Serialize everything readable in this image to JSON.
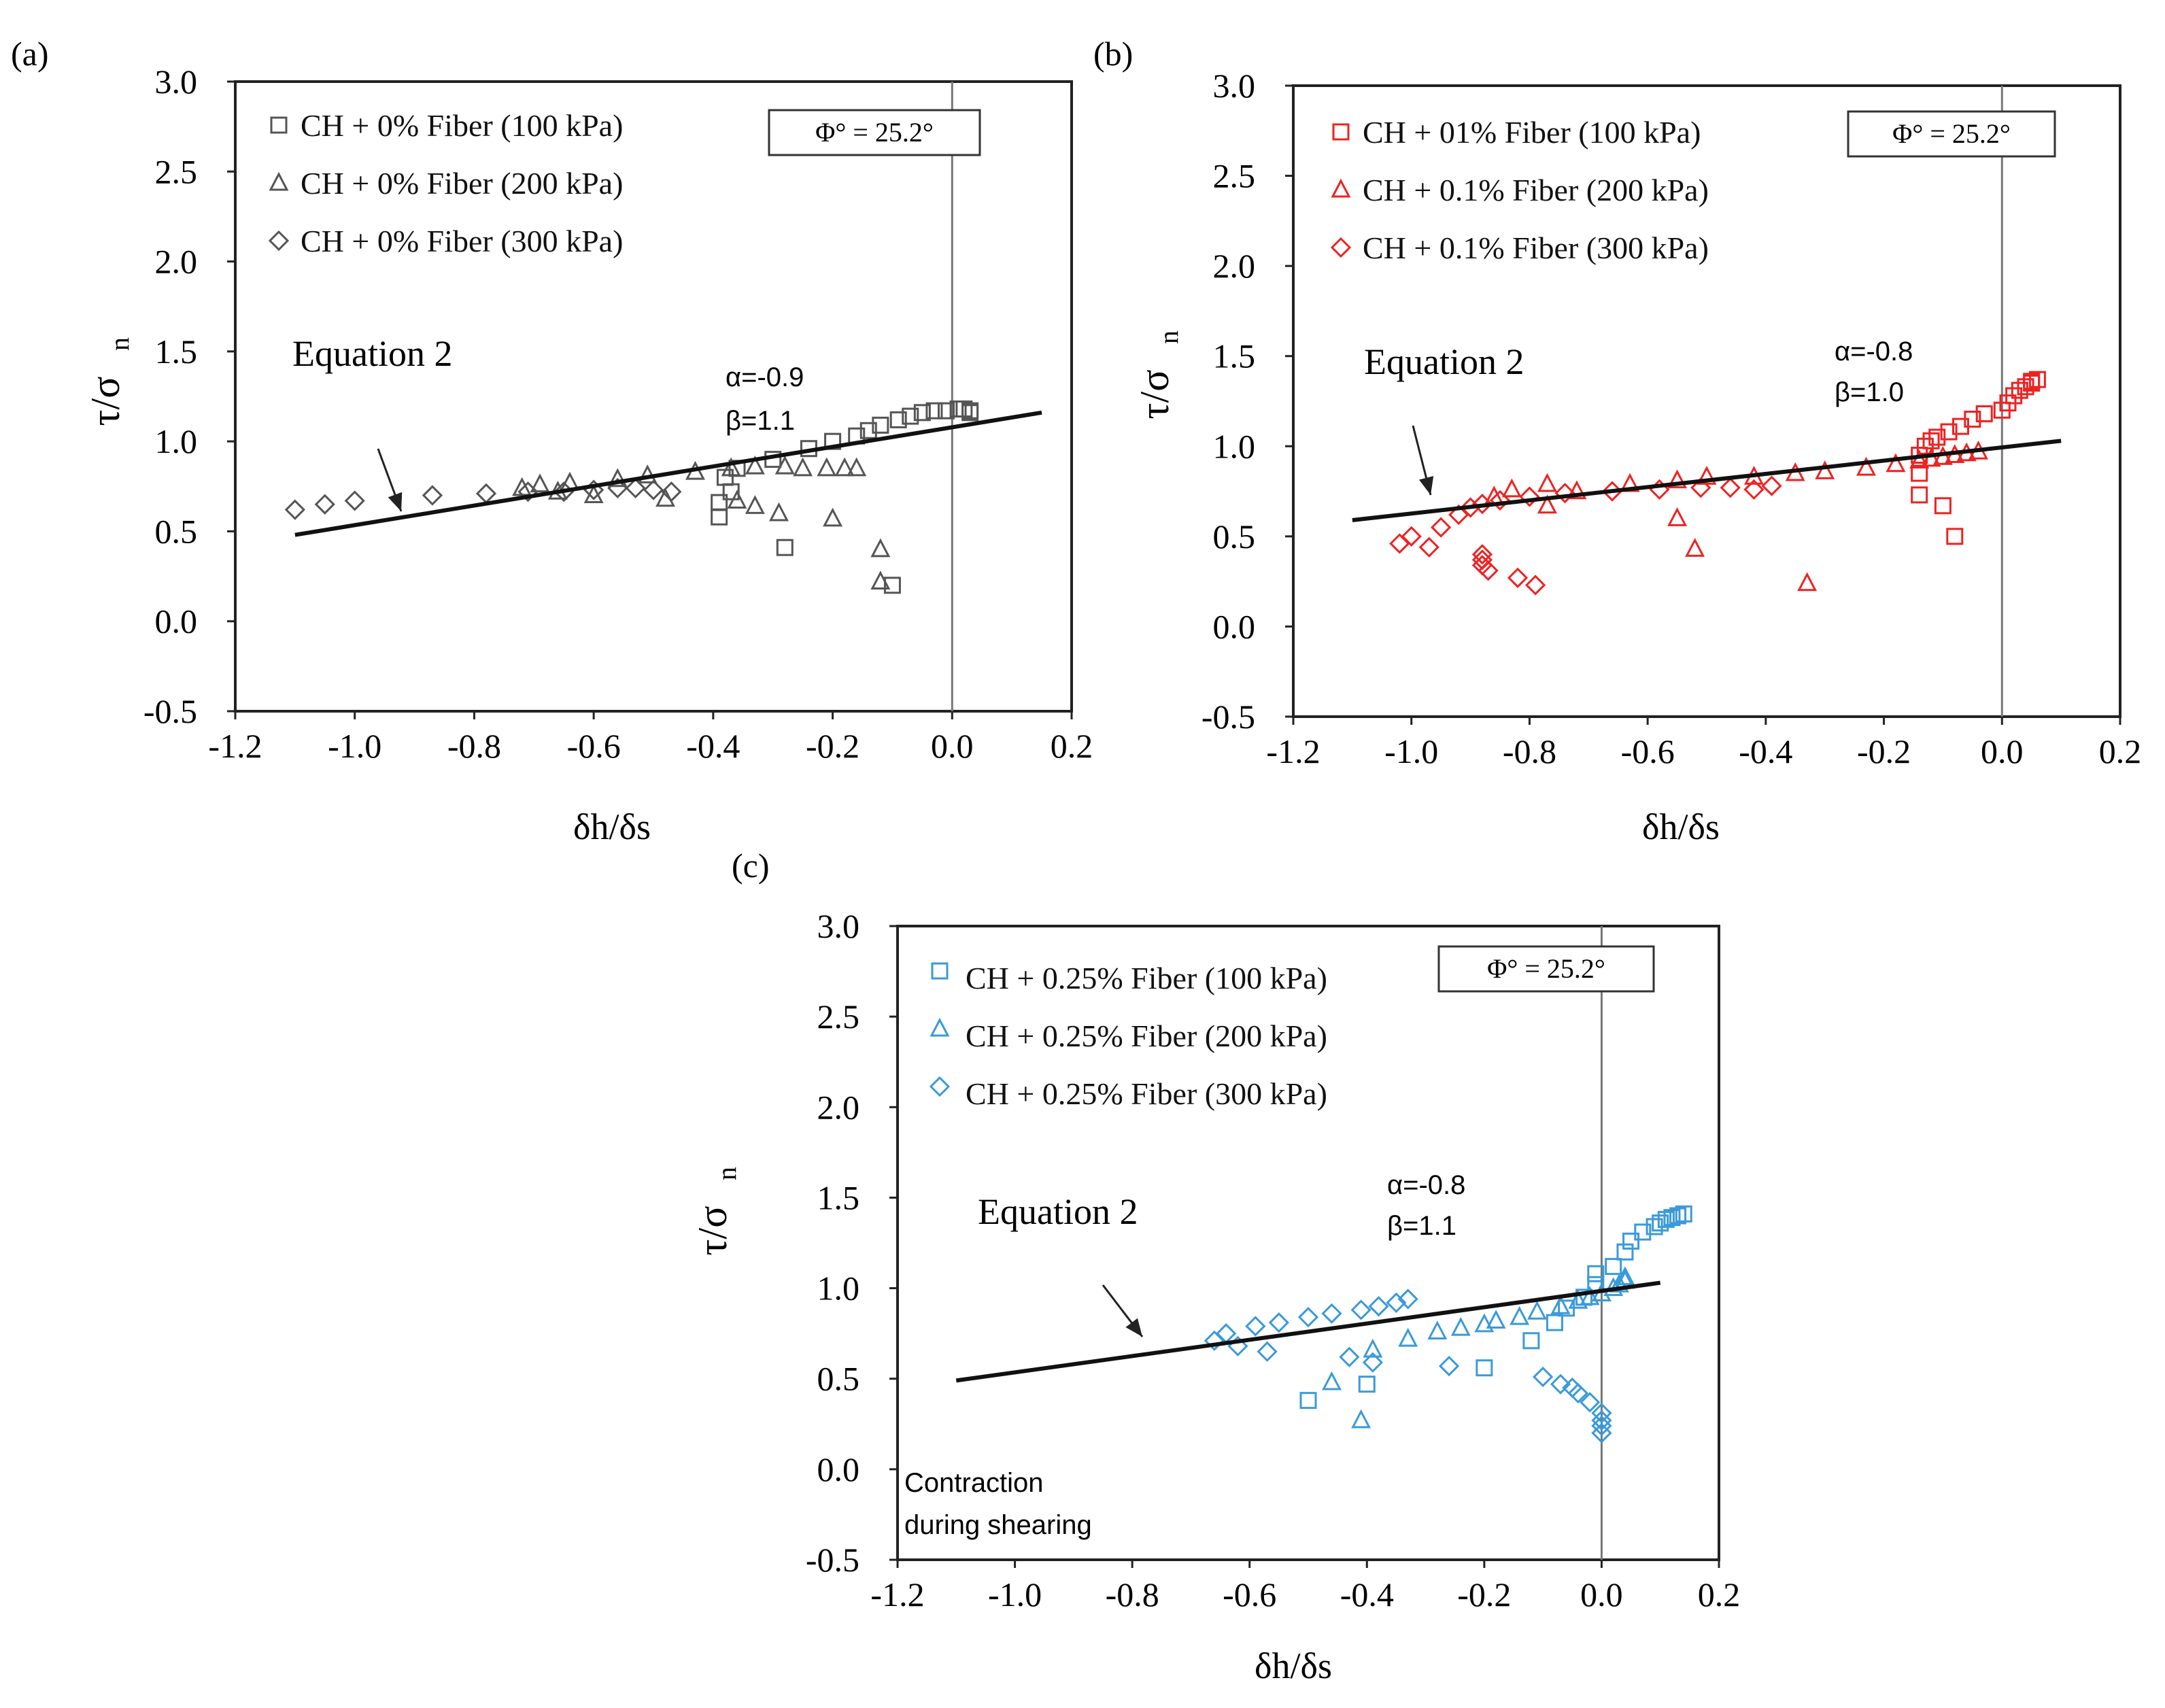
{
  "chart_data": [
    {
      "panel_label": "(a)",
      "type": "scatter",
      "title": "",
      "xlabel": "δh/δs",
      "ylabel_main": "τ/σ",
      "ylabel_sub": "n",
      "xlim": [
        -1.2,
        0.2
      ],
      "ylim": [
        -0.5,
        3.0
      ],
      "xticks": [
        -1.2,
        -1.0,
        -0.8,
        -0.6,
        -0.4,
        -0.2,
        0.0,
        0.2
      ],
      "xtick_labels": [
        "-1.2",
        "-1.0",
        "-0.8",
        "-0.6",
        "-0.4",
        "-0.2",
        "0.0",
        "0.2"
      ],
      "yticks": [
        -0.5,
        0.0,
        0.5,
        1.0,
        1.5,
        2.0,
        2.5,
        3.0
      ],
      "ytick_labels": [
        "-0.5",
        "0.0",
        "0.5",
        "1.0",
        "1.5",
        "2.0",
        "2.5",
        "3.0"
      ],
      "color": "#555555",
      "phi_label": "Φ° = 25.2°",
      "equation_label": "Equation 2",
      "alpha_label": "α=-0.9",
      "beta_label": "β=1.1",
      "fit_line": {
        "x": [
          -1.1,
          0.15
        ],
        "y": [
          0.48,
          1.16
        ]
      },
      "vertical_line_x": 0.0,
      "legend_position": "top-left",
      "series": [
        {
          "name": "CH + 0% Fiber (100 kPa)",
          "marker": "square",
          "points": [
            [
              -0.1,
              0.2
            ],
            [
              -0.28,
              0.41
            ],
            [
              -0.39,
              0.58
            ],
            [
              -0.39,
              0.66
            ],
            [
              -0.37,
              0.72
            ],
            [
              -0.38,
              0.8
            ],
            [
              -0.36,
              0.85
            ],
            [
              -0.3,
              0.9
            ],
            [
              -0.24,
              0.96
            ],
            [
              -0.2,
              1.0
            ],
            [
              -0.16,
              1.03
            ],
            [
              -0.14,
              1.06
            ],
            [
              -0.12,
              1.09
            ],
            [
              -0.09,
              1.12
            ],
            [
              -0.07,
              1.14
            ],
            [
              -0.05,
              1.16
            ],
            [
              -0.03,
              1.17
            ],
            [
              -0.01,
              1.17
            ],
            [
              0.01,
              1.18
            ],
            [
              0.02,
              1.18
            ],
            [
              0.03,
              1.17
            ],
            [
              0.03,
              1.16
            ]
          ]
        },
        {
          "name": "CH + 0% Fiber (200 kPa)",
          "marker": "triangle",
          "points": [
            [
              -0.12,
              0.22
            ],
            [
              -0.12,
              0.4
            ],
            [
              -0.2,
              0.57
            ],
            [
              -0.29,
              0.6
            ],
            [
              -0.33,
              0.64
            ],
            [
              -0.36,
              0.67
            ],
            [
              -0.48,
              0.68
            ],
            [
              -0.6,
              0.7
            ],
            [
              -0.66,
              0.72
            ],
            [
              -0.72,
              0.74
            ],
            [
              -0.69,
              0.76
            ],
            [
              -0.64,
              0.77
            ],
            [
              -0.56,
              0.79
            ],
            [
              -0.51,
              0.81
            ],
            [
              -0.43,
              0.83
            ],
            [
              -0.37,
              0.85
            ],
            [
              -0.33,
              0.86
            ],
            [
              -0.28,
              0.86
            ],
            [
              -0.25,
              0.85
            ],
            [
              -0.21,
              0.85
            ],
            [
              -0.18,
              0.85
            ],
            [
              -0.16,
              0.85
            ]
          ]
        },
        {
          "name": "CH + 0% Fiber (300 kPa)",
          "marker": "diamond",
          "points": [
            [
              -1.1,
              0.62
            ],
            [
              -1.05,
              0.65
            ],
            [
              -1.0,
              0.67
            ],
            [
              -0.87,
              0.7
            ],
            [
              -0.78,
              0.71
            ],
            [
              -0.71,
              0.72
            ],
            [
              -0.65,
              0.72
            ],
            [
              -0.6,
              0.73
            ],
            [
              -0.56,
              0.74
            ],
            [
              -0.53,
              0.74
            ],
            [
              -0.5,
              0.73
            ],
            [
              -0.47,
              0.72
            ]
          ]
        }
      ]
    },
    {
      "panel_label": "(b)",
      "type": "scatter",
      "title": "",
      "xlabel": "δh/δs",
      "ylabel_main": "τ/σ",
      "ylabel_sub": "n",
      "xlim": [
        -1.2,
        0.2
      ],
      "ylim": [
        -0.5,
        3.0
      ],
      "xticks": [
        -1.2,
        -1.0,
        -0.8,
        -0.6,
        -0.4,
        -0.2,
        0.0,
        0.2
      ],
      "xtick_labels": [
        "-1.2",
        "-1.0",
        "-0.8",
        "-0.6",
        "-0.4",
        "-0.2",
        "0.0",
        "0.2"
      ],
      "yticks": [
        -0.5,
        0.0,
        0.5,
        1.0,
        1.5,
        2.0,
        2.5,
        3.0
      ],
      "ytick_labels": [
        "-0.5",
        "0.0",
        "0.5",
        "1.0",
        "1.5",
        "2.0",
        "2.5",
        "3.0"
      ],
      "color": "#ee2222",
      "phi_label": "Φ° = 25.2°",
      "equation_label": "Equation 2",
      "alpha_label": "α=-0.8",
      "beta_label": "β=1.0",
      "fit_line": {
        "x": [
          -1.1,
          0.1
        ],
        "y": [
          0.59,
          1.03
        ]
      },
      "vertical_line_x": 0.0,
      "legend_position": "top-left",
      "series": [
        {
          "name": "CH + 01% Fiber (100 kPa)",
          "marker": "square",
          "points": [
            [
              -0.08,
              0.5
            ],
            [
              -0.1,
              0.67
            ],
            [
              -0.14,
              0.73
            ],
            [
              -0.14,
              0.85
            ],
            [
              -0.14,
              0.95
            ],
            [
              -0.13,
              1.0
            ],
            [
              -0.12,
              1.03
            ],
            [
              -0.11,
              1.05
            ],
            [
              -0.09,
              1.08
            ],
            [
              -0.07,
              1.11
            ],
            [
              -0.05,
              1.15
            ],
            [
              -0.03,
              1.18
            ],
            [
              0.0,
              1.2
            ],
            [
              0.01,
              1.24
            ],
            [
              0.02,
              1.28
            ],
            [
              0.03,
              1.31
            ],
            [
              0.04,
              1.33
            ],
            [
              0.05,
              1.35
            ],
            [
              0.05,
              1.36
            ],
            [
              0.06,
              1.37
            ]
          ]
        },
        {
          "name": "CH + 0.1% Fiber (200 kPa)",
          "marker": "triangle",
          "points": [
            [
              -0.33,
              0.24
            ],
            [
              -0.52,
              0.43
            ],
            [
              -0.55,
              0.6
            ],
            [
              -0.77,
              0.67
            ],
            [
              -0.86,
              0.72
            ],
            [
              -0.83,
              0.76
            ],
            [
              -0.77,
              0.79
            ],
            [
              -0.72,
              0.75
            ],
            [
              -0.63,
              0.79
            ],
            [
              -0.55,
              0.81
            ],
            [
              -0.5,
              0.83
            ],
            [
              -0.42,
              0.83
            ],
            [
              -0.35,
              0.85
            ],
            [
              -0.3,
              0.86
            ],
            [
              -0.23,
              0.88
            ],
            [
              -0.18,
              0.9
            ],
            [
              -0.14,
              0.92
            ],
            [
              -0.12,
              0.93
            ],
            [
              -0.1,
              0.94
            ],
            [
              -0.08,
              0.95
            ],
            [
              -0.06,
              0.96
            ],
            [
              -0.04,
              0.97
            ]
          ]
        },
        {
          "name": "CH + 0.1% Fiber (300 kPa)",
          "marker": "diamond",
          "points": [
            [
              -1.02,
              0.46
            ],
            [
              -1.0,
              0.5
            ],
            [
              -0.97,
              0.44
            ],
            [
              -0.88,
              0.34
            ],
            [
              -0.88,
              0.37
            ],
            [
              -0.88,
              0.4
            ],
            [
              -0.87,
              0.31
            ],
            [
              -0.82,
              0.27
            ],
            [
              -0.79,
              0.23
            ],
            [
              -0.95,
              0.55
            ],
            [
              -0.92,
              0.62
            ],
            [
              -0.9,
              0.66
            ],
            [
              -0.88,
              0.68
            ],
            [
              -0.85,
              0.7
            ],
            [
              -0.8,
              0.72
            ],
            [
              -0.74,
              0.74
            ],
            [
              -0.66,
              0.75
            ],
            [
              -0.58,
              0.76
            ],
            [
              -0.51,
              0.77
            ],
            [
              -0.46,
              0.77
            ],
            [
              -0.42,
              0.76
            ],
            [
              -0.39,
              0.78
            ]
          ]
        }
      ]
    },
    {
      "panel_label": "(c)",
      "type": "scatter",
      "title": "",
      "xlabel": "δh/δs",
      "ylabel_main": "τ/σ",
      "ylabel_sub": "n",
      "xlim": [
        -1.2,
        0.2
      ],
      "ylim": [
        -0.5,
        3.0
      ],
      "xticks": [
        -1.2,
        -1.0,
        -0.8,
        -0.6,
        -0.4,
        -0.2,
        0.0,
        0.2
      ],
      "xtick_labels": [
        "-1.2",
        "-1.0",
        "-0.8",
        "-0.6",
        "-0.4",
        "-0.2",
        "0.0",
        "0.2"
      ],
      "yticks": [
        -0.5,
        0.0,
        0.5,
        1.0,
        1.5,
        2.0,
        2.5,
        3.0
      ],
      "ytick_labels": [
        "-0.5",
        "0.0",
        "0.5",
        "1.0",
        "1.5",
        "2.0",
        "2.5",
        "3.0"
      ],
      "color": "#3a9ad9",
      "phi_label": "Φ° = 25.2°",
      "equation_label": "Equation 2",
      "alpha_label": "α=-0.8",
      "beta_label": "β=1.1",
      "annotation_line1": "Contraction",
      "annotation_line2": "during shearing",
      "fit_line": {
        "x": [
          -1.1,
          0.1
        ],
        "y": [
          0.49,
          1.03
        ]
      },
      "vertical_line_x": 0.0,
      "legend_position": "top-left",
      "series": [
        {
          "name": "CH + 0.25% Fiber (100 kPa)",
          "marker": "square",
          "points": [
            [
              -0.5,
              0.38
            ],
            [
              -0.4,
              0.47
            ],
            [
              -0.2,
              0.56
            ],
            [
              -0.12,
              0.71
            ],
            [
              -0.08,
              0.81
            ],
            [
              -0.06,
              0.89
            ],
            [
              -0.03,
              0.95
            ],
            [
              -0.01,
              1.02
            ],
            [
              -0.01,
              1.08
            ],
            [
              0.02,
              1.12
            ],
            [
              0.04,
              1.2
            ],
            [
              0.05,
              1.26
            ],
            [
              0.07,
              1.31
            ],
            [
              0.09,
              1.34
            ],
            [
              0.1,
              1.36
            ],
            [
              0.11,
              1.38
            ],
            [
              0.12,
              1.39
            ],
            [
              0.13,
              1.4
            ],
            [
              0.14,
              1.41
            ]
          ]
        },
        {
          "name": "CH + 0.25% Fiber (200 kPa)",
          "marker": "triangle",
          "points": [
            [
              -0.41,
              0.27
            ],
            [
              -0.46,
              0.48
            ],
            [
              -0.39,
              0.66
            ],
            [
              -0.33,
              0.72
            ],
            [
              -0.28,
              0.76
            ],
            [
              -0.24,
              0.78
            ],
            [
              -0.2,
              0.8
            ],
            [
              -0.18,
              0.82
            ],
            [
              -0.14,
              0.84
            ],
            [
              -0.11,
              0.87
            ],
            [
              -0.07,
              0.9
            ],
            [
              -0.04,
              0.93
            ],
            [
              -0.02,
              0.95
            ],
            [
              0.0,
              0.97
            ],
            [
              0.02,
              1.0
            ],
            [
              0.03,
              1.02
            ],
            [
              0.04,
              1.04
            ],
            [
              0.04,
              1.06
            ]
          ]
        },
        {
          "name": "CH + 0.25% Fiber (300 kPa)",
          "marker": "diamond",
          "points": [
            [
              -0.66,
              0.71
            ],
            [
              -0.64,
              0.75
            ],
            [
              -0.62,
              0.68
            ],
            [
              -0.57,
              0.65
            ],
            [
              -0.59,
              0.79
            ],
            [
              -0.55,
              0.81
            ],
            [
              -0.5,
              0.84
            ],
            [
              -0.46,
              0.86
            ],
            [
              -0.41,
              0.88
            ],
            [
              -0.38,
              0.9
            ],
            [
              -0.35,
              0.92
            ],
            [
              -0.33,
              0.94
            ],
            [
              -0.43,
              0.62
            ],
            [
              -0.39,
              0.59
            ],
            [
              -0.26,
              0.57
            ],
            [
              -0.1,
              0.51
            ],
            [
              -0.07,
              0.47
            ],
            [
              -0.05,
              0.45
            ],
            [
              -0.04,
              0.42
            ],
            [
              -0.02,
              0.37
            ],
            [
              0.0,
              0.31
            ],
            [
              0.0,
              0.27
            ],
            [
              0.0,
              0.24
            ],
            [
              0.0,
              0.2
            ]
          ]
        }
      ]
    }
  ]
}
